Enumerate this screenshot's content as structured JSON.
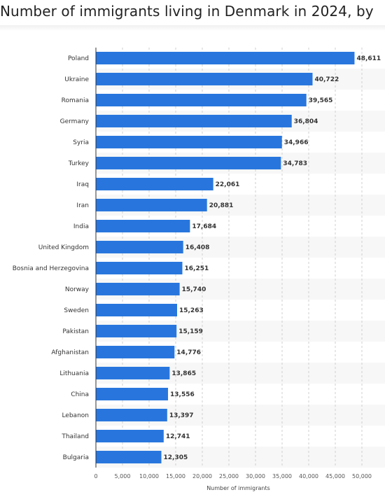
{
  "page": {
    "title": "Number of immigrants living in Denmark in 2024, by"
  },
  "colors": {
    "bar": "#2876dd",
    "band": "#f7f7f7",
    "grid": "#cfcfcf",
    "axis": "#333333"
  },
  "chart_data": {
    "type": "bar",
    "orientation": "horizontal",
    "categories": [
      "Poland",
      "Ukraine",
      "Romania",
      "Germany",
      "Syria",
      "Turkey",
      "Iraq",
      "Iran",
      "India",
      "United Kingdom",
      "Bosnia and Herzegovina",
      "Norway",
      "Sweden",
      "Pakistan",
      "Afghanistan",
      "Lithuania",
      "China",
      "Lebanon",
      "Thailand",
      "Bulgaria"
    ],
    "values": [
      48611,
      40722,
      39565,
      36804,
      34966,
      34783,
      22061,
      20881,
      17684,
      16408,
      16251,
      15740,
      15263,
      15159,
      14776,
      13865,
      13556,
      13397,
      12741,
      12305
    ],
    "value_labels": [
      "48,611",
      "40,722",
      "39,565",
      "36,804",
      "34,966",
      "34,783",
      "22,061",
      "20,881",
      "17,684",
      "16,408",
      "16,251",
      "15,740",
      "15,263",
      "15,159",
      "14,776",
      "13,865",
      "13,556",
      "13,397",
      "12,741",
      "12,305"
    ],
    "xlabel": "Number of immigrants",
    "xticks": [
      0,
      5000,
      10000,
      15000,
      20000,
      25000,
      30000,
      35000,
      40000,
      45000,
      50000
    ],
    "xtick_labels": [
      "0",
      "5,000",
      "10,000",
      "15,000",
      "20,000",
      "25,000",
      "30,000",
      "35,000",
      "40,000",
      "45,000",
      "50,000"
    ],
    "xlim": [
      0,
      55000
    ],
    "grid": true
  }
}
